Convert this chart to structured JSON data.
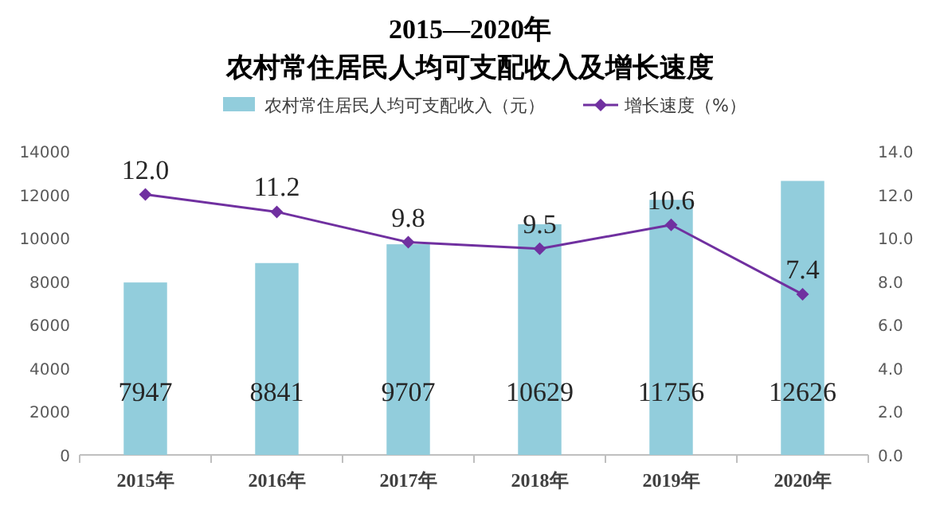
{
  "chart_data": {
    "type": "bar",
    "title": "2015—2020年",
    "subtitle": "农村常住居民人均可支配收入及增长速度",
    "categories": [
      "2015年",
      "2016年",
      "2017年",
      "2018年",
      "2019年",
      "2020年"
    ],
    "series": [
      {
        "name": "农村常住居民人均可支配收入（元）",
        "color": "#92cddc",
        "values": [
          7947,
          8841,
          9707,
          10629,
          11756,
          12626
        ]
      },
      {
        "name": "增长速度（%）",
        "type": "line",
        "axis": "y2",
        "color": "#7030a0",
        "marker": "diamond",
        "values": [
          12.0,
          11.2,
          9.8,
          9.5,
          10.6,
          7.4
        ],
        "value_labels": [
          "12.0",
          "11.2",
          "9.8",
          "9.5",
          "10.6",
          "7.4"
        ]
      }
    ],
    "ylim": [
      0,
      14000
    ],
    "yticks": [
      0,
      2000,
      4000,
      6000,
      8000,
      10000,
      12000,
      14000
    ],
    "y2lim": [
      0,
      14
    ],
    "y2ticks": [
      {
        "value": 0,
        "label": "0.0"
      },
      {
        "value": 2,
        "label": "2.0"
      },
      {
        "value": 4,
        "label": "4.0"
      },
      {
        "value": 6,
        "label": "6.0"
      },
      {
        "value": 8,
        "label": "8.0"
      },
      {
        "value": 10,
        "label": "10.0"
      },
      {
        "value": 12,
        "label": "12.0"
      },
      {
        "value": 14,
        "label": "14.0"
      }
    ],
    "data_labels": true,
    "legend": "top",
    "grid": false
  }
}
